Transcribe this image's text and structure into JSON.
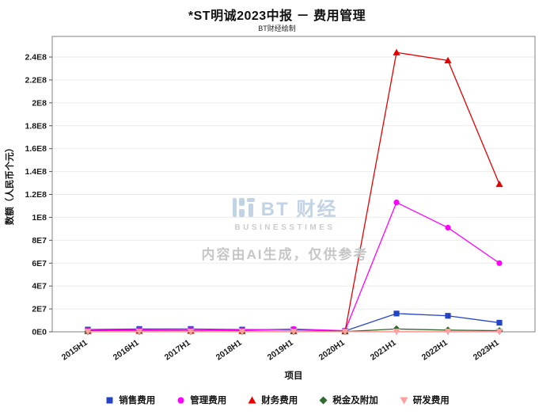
{
  "header": {
    "title": "*ST明诚2023中报 － 费用管理",
    "subtitle": "BT财经绘制"
  },
  "watermark": {
    "logo_text": "BT 财经",
    "logo_sub": "BUSINESSTIMES",
    "notice": "内容由AI生成，仅供参考"
  },
  "chart_data": {
    "type": "line",
    "title": "*ST明诚2023中报 － 费用管理",
    "subtitle": "BT财经绘制",
    "xlabel": "项目",
    "ylabel": "数额（人民币个元）",
    "legend_position": "bottom",
    "grid": true,
    "ylim": [
      0,
      258000000
    ],
    "categories": [
      "2015H1",
      "2016H1",
      "2017H1",
      "2018H1",
      "2019H1",
      "2020H1",
      "2021H1",
      "2022H1",
      "2023H1"
    ],
    "y_ticks": [
      {
        "label": "0E0",
        "value": 0
      },
      {
        "label": "2E7",
        "value": 20000000
      },
      {
        "label": "4E7",
        "value": 40000000
      },
      {
        "label": "6E7",
        "value": 60000000
      },
      {
        "label": "8E7",
        "value": 80000000
      },
      {
        "label": "1E8",
        "value": 100000000
      },
      {
        "label": "1.2E8",
        "value": 120000000
      },
      {
        "label": "1.4E8",
        "value": 140000000
      },
      {
        "label": "1.6E8",
        "value": 160000000
      },
      {
        "label": "1.8E8",
        "value": 180000000
      },
      {
        "label": "2E8",
        "value": 200000000
      },
      {
        "label": "2.2E8",
        "value": 220000000
      },
      {
        "label": "2.4E8",
        "value": 240000000
      }
    ],
    "series": [
      {
        "name": "销售费用",
        "color": "#2444c4",
        "marker": "square",
        "values": [
          2000000,
          2500000,
          2500000,
          2000000,
          2000000,
          800000,
          16000000,
          14000000,
          8000000
        ]
      },
      {
        "name": "管理费用",
        "color": "#ff00ff",
        "marker": "circle",
        "values": [
          1500000,
          1800000,
          2000000,
          1500000,
          2500000,
          1000000,
          113000000,
          91000000,
          60000000
        ]
      },
      {
        "name": "财务费用",
        "color": "#e60000",
        "marker": "triangle-up",
        "values": [
          600000,
          800000,
          800000,
          600000,
          500000,
          300000,
          244000000,
          237000000,
          129000000
        ]
      },
      {
        "name": "税金及附加",
        "color": "#2f6b2f",
        "marker": "diamond",
        "values": [
          300000,
          300000,
          400000,
          300000,
          300000,
          200000,
          2500000,
          1500000,
          1000000
        ]
      },
      {
        "name": "研发费用",
        "color": "#ff9e9e",
        "marker": "triangle-down",
        "values": [
          200000,
          200000,
          200000,
          200000,
          200000,
          100000,
          300000,
          300000,
          200000
        ]
      }
    ]
  }
}
